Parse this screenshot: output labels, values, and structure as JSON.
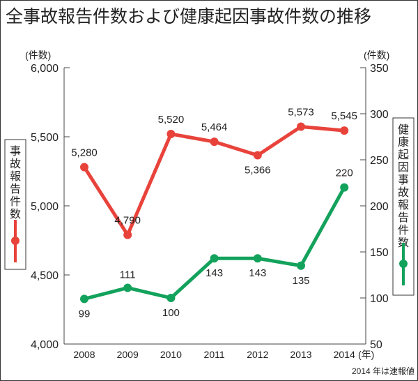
{
  "title": "全事故報告件数および健康起因事故件数の推移",
  "footnote": "2014 年は速報値",
  "colors": {
    "red": "#e8433b",
    "green": "#13a25c"
  },
  "chart_data": {
    "type": "line",
    "title": "全事故報告件数および健康起因事故件数の推移",
    "categories": [
      "2008",
      "2009",
      "2010",
      "2011",
      "2012",
      "2013",
      "2014"
    ],
    "x_unit": "(年)",
    "left_axis": {
      "unit": "(件数)",
      "ylim": [
        4000,
        6000
      ],
      "ticks": [
        4000,
        4500,
        5000,
        5500,
        6000
      ],
      "tick_labels": [
        "4,000",
        "4,500",
        "5,000",
        "5,500",
        "6,000"
      ]
    },
    "right_axis": {
      "unit": "(件数)",
      "ylim": [
        50,
        350
      ],
      "ticks": [
        50,
        100,
        150,
        200,
        250,
        300,
        350
      ],
      "tick_labels": [
        "50",
        "100",
        "150",
        "200",
        "250",
        "300",
        "350"
      ]
    },
    "series": [
      {
        "name": "事故報告件数",
        "axis": "left",
        "color": "#e8433b",
        "values": [
          5280,
          4790,
          5520,
          5464,
          5366,
          5573,
          5545
        ],
        "labels": [
          "5,280",
          "4,790",
          "5,520",
          "5,464",
          "5,366",
          "5,573",
          "5,545"
        ]
      },
      {
        "name": "健康起因事故報告件数",
        "axis": "right",
        "color": "#13a25c",
        "values": [
          99,
          111,
          100,
          143,
          143,
          135,
          220
        ],
        "labels": [
          "99",
          "111",
          "100",
          "143",
          "143",
          "135",
          "220"
        ]
      }
    ]
  }
}
